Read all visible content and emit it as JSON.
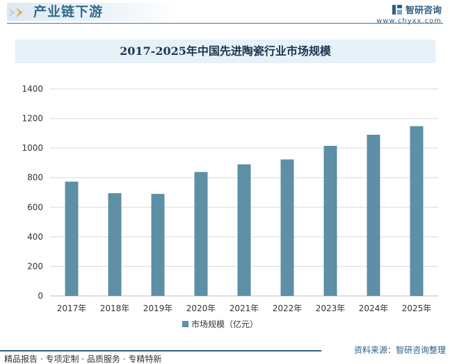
{
  "header": {
    "section_title": "产业链下游",
    "brand_name": "智研咨询",
    "brand_url": "www.chyxx.com"
  },
  "footer": {
    "tagline": "精品报告 · 专项定制 · 品质服务 · 专精特新",
    "source": "资料来源：智研咨询整理"
  },
  "colors": {
    "bar": "#5d8fa6",
    "accent": "#2d5f86",
    "title_band": "#e6f1f8"
  },
  "chart_data": {
    "type": "bar",
    "title": "2017-2025年中国先进陶瓷行业市场规模",
    "categories": [
      "2017年",
      "2018年",
      "2019年",
      "2020年",
      "2021年",
      "2022年",
      "2023年",
      "2024年",
      "2025年"
    ],
    "series": [
      {
        "name": "市场规模（亿元）",
        "values": [
          773,
          695,
          690,
          838,
          890,
          923,
          1015,
          1090,
          1148
        ]
      }
    ],
    "xlabel": "",
    "ylabel": "",
    "ylim": [
      0,
      1400
    ],
    "yticks": [
      0,
      200,
      400,
      600,
      800,
      1000,
      1200,
      1400
    ],
    "grid": true,
    "legend": "bottom"
  }
}
